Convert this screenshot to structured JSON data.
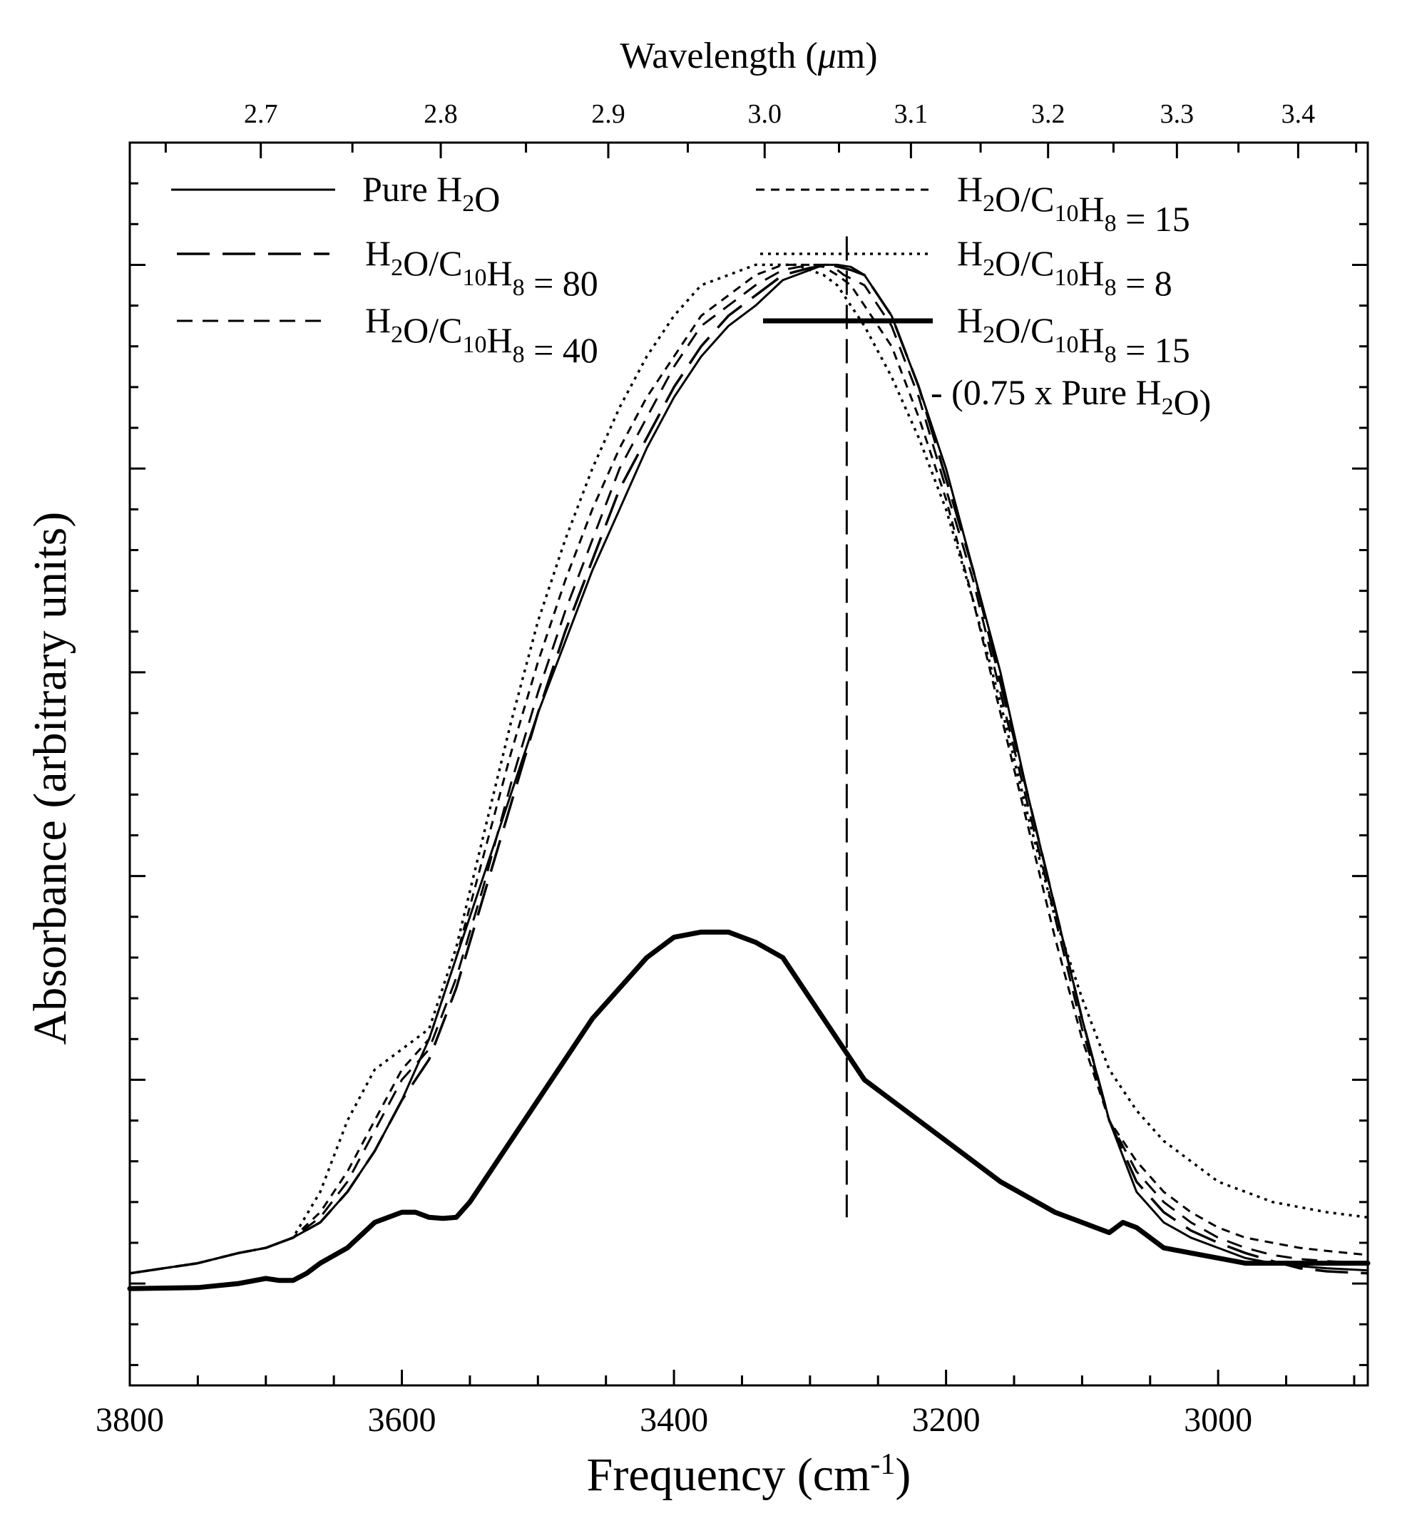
{
  "chart_data": {
    "type": "line",
    "xlabel": "Frequency (cm",
    "xlabel_superscript": "-1",
    "xlabel_end": ")",
    "ylabel": "Absorbance (arbitrary units)",
    "top_xlabel_pre": "Wavelength (",
    "top_xlabel_mu": "μ",
    "top_xlabel_post": "m)",
    "xlim": [
      3800,
      2890
    ],
    "ylim": [
      -0.1,
      1.12
    ],
    "x_ticks": [
      3800,
      3600,
      3400,
      3200,
      3000
    ],
    "x_tick_labels": [
      "3800",
      "3600",
      "3400",
      "3200",
      "3000"
    ],
    "top_ticks": [
      2.7,
      2.8,
      2.9,
      3.0,
      3.1,
      3.2,
      3.3,
      3.4
    ],
    "top_tick_labels": [
      "2.7",
      "2.8",
      "2.9",
      "3.0",
      "3.1",
      "3.2",
      "3.3",
      "3.4"
    ],
    "reference_line_x": 3273,
    "grid": false,
    "legend_placement": "top",
    "legend": [
      {
        "parts": [
          [
            "Pure H",
            ""
          ],
          [
            "2",
            "sub"
          ],
          [
            "O",
            ""
          ]
        ]
      },
      {
        "parts": [
          [
            "H",
            ""
          ],
          [
            "2",
            "sub"
          ],
          [
            "O/C",
            ""
          ],
          [
            "10",
            "sub"
          ],
          [
            "H",
            ""
          ],
          [
            "8",
            "sub"
          ],
          [
            " = 80",
            ""
          ]
        ]
      },
      {
        "parts": [
          [
            "H",
            ""
          ],
          [
            "2",
            "sub"
          ],
          [
            "O/C",
            ""
          ],
          [
            "10",
            "sub"
          ],
          [
            "H",
            ""
          ],
          [
            "8",
            "sub"
          ],
          [
            " = 40",
            ""
          ]
        ]
      },
      {
        "parts": [
          [
            "H",
            ""
          ],
          [
            "2",
            "sub"
          ],
          [
            "O/C",
            ""
          ],
          [
            "10",
            "sub"
          ],
          [
            "H",
            ""
          ],
          [
            "8",
            "sub"
          ],
          [
            " = 15",
            ""
          ]
        ]
      },
      {
        "parts": [
          [
            "H",
            ""
          ],
          [
            "2",
            "sub"
          ],
          [
            "O/C",
            ""
          ],
          [
            "10",
            "sub"
          ],
          [
            "H",
            ""
          ],
          [
            "8",
            "sub"
          ],
          [
            " = 8",
            ""
          ]
        ]
      },
      {
        "parts": [
          [
            "H",
            ""
          ],
          [
            "2",
            "sub"
          ],
          [
            "O/C",
            ""
          ],
          [
            "10",
            "sub"
          ],
          [
            "H",
            ""
          ],
          [
            "8",
            "sub"
          ],
          [
            " = 15",
            ""
          ]
        ]
      },
      {
        "parts": [
          [
            "- (0.75 x Pure H",
            ""
          ],
          [
            "2",
            "sub"
          ],
          [
            "O)",
            ""
          ]
        ]
      }
    ],
    "series": [
      {
        "style": "solid",
        "x": [
          3800,
          3750,
          3720,
          3700,
          3680,
          3660,
          3640,
          3620,
          3600,
          3580,
          3560,
          3540,
          3520,
          3500,
          3480,
          3460,
          3440,
          3420,
          3400,
          3380,
          3360,
          3340,
          3320,
          3300,
          3290,
          3280,
          3270,
          3260,
          3240,
          3220,
          3200,
          3180,
          3160,
          3140,
          3120,
          3100,
          3080,
          3060,
          3040,
          3020,
          3000,
          2980,
          2960,
          2940,
          2920,
          2890
        ],
        "y": [
          0.01,
          0.02,
          0.03,
          0.035,
          0.045,
          0.06,
          0.09,
          0.13,
          0.18,
          0.24,
          0.32,
          0.4,
          0.48,
          0.56,
          0.63,
          0.7,
          0.76,
          0.82,
          0.87,
          0.91,
          0.94,
          0.96,
          0.985,
          0.995,
          1.0,
          1.0,
          0.998,
          0.99,
          0.95,
          0.88,
          0.8,
          0.7,
          0.6,
          0.48,
          0.37,
          0.26,
          0.16,
          0.09,
          0.06,
          0.045,
          0.035,
          0.025,
          0.02,
          0.017,
          0.015,
          0.013
        ]
      },
      {
        "style": "longdash",
        "x": [
          3800,
          3750,
          3720,
          3700,
          3680,
          3660,
          3640,
          3620,
          3600,
          3580,
          3560,
          3540,
          3520,
          3500,
          3480,
          3460,
          3440,
          3420,
          3400,
          3380,
          3360,
          3340,
          3320,
          3300,
          3285,
          3270,
          3260,
          3240,
          3220,
          3200,
          3180,
          3160,
          3140,
          3120,
          3100,
          3080,
          3060,
          3040,
          3020,
          3000,
          2980,
          2960,
          2940,
          2920,
          2890
        ],
        "y": [
          0.01,
          0.02,
          0.03,
          0.035,
          0.045,
          0.06,
          0.09,
          0.13,
          0.18,
          0.22,
          0.29,
          0.38,
          0.47,
          0.56,
          0.64,
          0.71,
          0.78,
          0.83,
          0.88,
          0.92,
          0.95,
          0.97,
          0.99,
          0.997,
          1.0,
          0.995,
          0.99,
          0.95,
          0.88,
          0.79,
          0.7,
          0.59,
          0.48,
          0.37,
          0.26,
          0.16,
          0.1,
          0.07,
          0.052,
          0.04,
          0.03,
          0.022,
          0.015,
          0.012,
          0.01
        ]
      },
      {
        "style": "dash",
        "x": [
          3800,
          3750,
          3720,
          3700,
          3680,
          3660,
          3640,
          3620,
          3600,
          3580,
          3560,
          3540,
          3520,
          3500,
          3480,
          3460,
          3440,
          3420,
          3400,
          3380,
          3360,
          3340,
          3320,
          3300,
          3285,
          3275,
          3260,
          3240,
          3220,
          3200,
          3180,
          3160,
          3140,
          3120,
          3100,
          3080,
          3060,
          3040,
          3020,
          3000,
          2980,
          2960,
          2940,
          2920,
          2890
        ],
        "y": [
          0.01,
          0.02,
          0.03,
          0.035,
          0.045,
          0.065,
          0.1,
          0.15,
          0.2,
          0.23,
          0.3,
          0.39,
          0.49,
          0.58,
          0.66,
          0.73,
          0.8,
          0.85,
          0.9,
          0.94,
          0.96,
          0.98,
          0.995,
          1.0,
          1.0,
          0.99,
          0.98,
          0.94,
          0.87,
          0.78,
          0.69,
          0.58,
          0.47,
          0.36,
          0.25,
          0.16,
          0.11,
          0.08,
          0.06,
          0.045,
          0.035,
          0.028,
          0.024,
          0.022,
          0.02
        ]
      },
      {
        "style": "shortdash",
        "x": [
          3800,
          3750,
          3720,
          3700,
          3680,
          3660,
          3640,
          3620,
          3600,
          3580,
          3560,
          3540,
          3520,
          3500,
          3480,
          3460,
          3440,
          3420,
          3400,
          3380,
          3360,
          3340,
          3320,
          3300,
          3290,
          3280,
          3270,
          3260,
          3240,
          3220,
          3200,
          3180,
          3160,
          3140,
          3120,
          3100,
          3080,
          3060,
          3040,
          3020,
          3000,
          2980,
          2960,
          2940,
          2920,
          2890
        ],
        "y": [
          0.01,
          0.02,
          0.03,
          0.035,
          0.045,
          0.07,
          0.11,
          0.16,
          0.21,
          0.24,
          0.32,
          0.42,
          0.52,
          0.61,
          0.69,
          0.76,
          0.82,
          0.87,
          0.91,
          0.95,
          0.97,
          0.99,
          1.0,
          1.0,
          0.998,
          0.99,
          0.98,
          0.96,
          0.92,
          0.85,
          0.77,
          0.67,
          0.56,
          0.45,
          0.34,
          0.24,
          0.16,
          0.12,
          0.09,
          0.07,
          0.055,
          0.045,
          0.04,
          0.035,
          0.032,
          0.028
        ]
      },
      {
        "style": "dot",
        "x": [
          3800,
          3750,
          3720,
          3700,
          3680,
          3660,
          3640,
          3620,
          3600,
          3580,
          3560,
          3540,
          3520,
          3500,
          3480,
          3460,
          3440,
          3420,
          3400,
          3380,
          3360,
          3340,
          3320,
          3310,
          3300,
          3290,
          3280,
          3270,
          3260,
          3240,
          3220,
          3200,
          3180,
          3160,
          3140,
          3120,
          3100,
          3080,
          3060,
          3040,
          3020,
          3000,
          2980,
          2960,
          2940,
          2920,
          2890
        ],
        "y": [
          0.01,
          0.02,
          0.03,
          0.035,
          0.045,
          0.09,
          0.16,
          0.21,
          0.23,
          0.25,
          0.33,
          0.44,
          0.55,
          0.65,
          0.73,
          0.8,
          0.86,
          0.91,
          0.95,
          0.98,
          0.99,
          1.0,
          1.0,
          1.0,
          0.995,
          0.99,
          0.98,
          0.96,
          0.94,
          0.89,
          0.83,
          0.76,
          0.67,
          0.57,
          0.46,
          0.36,
          0.28,
          0.21,
          0.17,
          0.14,
          0.12,
          0.1,
          0.09,
          0.08,
          0.075,
          0.07,
          0.065
        ]
      },
      {
        "style": "thick",
        "x": [
          3800,
          3750,
          3720,
          3700,
          3690,
          3680,
          3670,
          3660,
          3640,
          3620,
          3600,
          3590,
          3580,
          3570,
          3560,
          3550,
          3540,
          3520,
          3500,
          3480,
          3460,
          3440,
          3420,
          3400,
          3380,
          3360,
          3340,
          3320,
          3300,
          3280,
          3270,
          3260,
          3240,
          3220,
          3200,
          3180,
          3160,
          3140,
          3120,
          3100,
          3090,
          3080,
          3070,
          3060,
          3050,
          3040,
          3020,
          3000,
          2980,
          2960,
          2940,
          2920,
          2890
        ],
        "y": [
          -0.005,
          -0.004,
          0.0,
          0.005,
          0.003,
          0.003,
          0.01,
          0.02,
          0.035,
          0.06,
          0.07,
          0.07,
          0.065,
          0.064,
          0.065,
          0.08,
          0.1,
          0.14,
          0.18,
          0.22,
          0.26,
          0.29,
          0.32,
          0.34,
          0.345,
          0.345,
          0.335,
          0.32,
          0.28,
          0.24,
          0.22,
          0.2,
          0.18,
          0.16,
          0.14,
          0.12,
          0.1,
          0.085,
          0.07,
          0.06,
          0.055,
          0.05,
          0.06,
          0.055,
          0.045,
          0.035,
          0.03,
          0.025,
          0.02,
          0.02,
          0.02,
          0.02,
          0.02
        ]
      }
    ]
  }
}
